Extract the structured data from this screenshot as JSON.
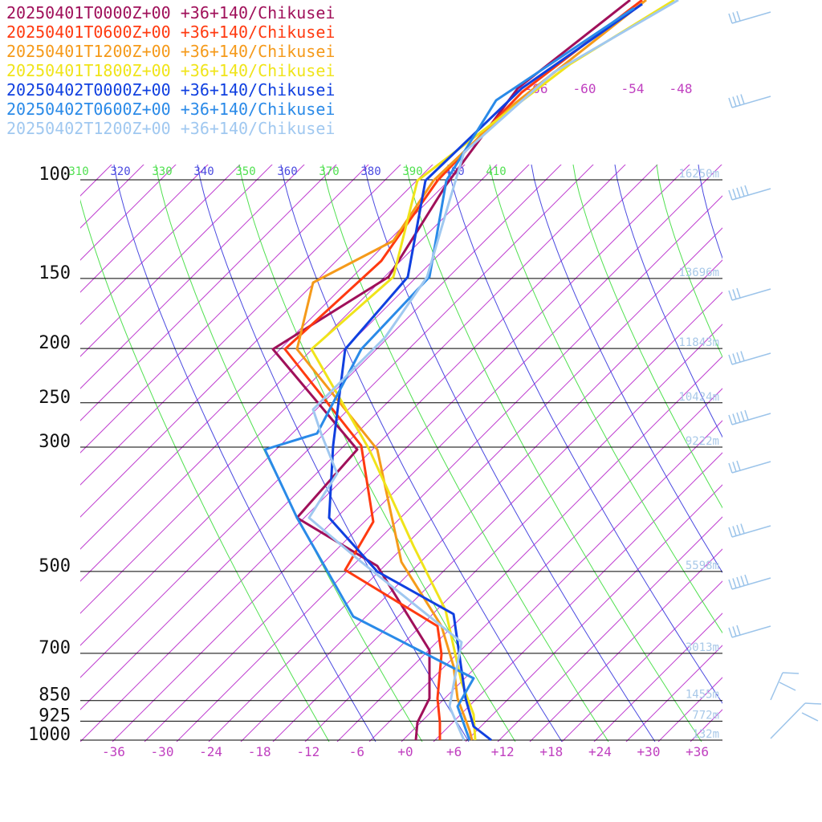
{
  "legend": [
    {
      "label": "20250401T0000Z+00 +36+140/Chikusei",
      "color": "#a0105a"
    },
    {
      "label": "20250401T0600Z+00 +36+140/Chikusei",
      "color": "#ff3a10"
    },
    {
      "label": "20250401T1200Z+00 +36+140/Chikusei",
      "color": "#f59a1a"
    },
    {
      "label": "20250401T1800Z+00 +36+140/Chikusei",
      "color": "#f0e41a"
    },
    {
      "label": "20250402T0000Z+00 +36+140/Chikusei",
      "color": "#1040e0"
    },
    {
      "label": "20250402T0600Z+00 +36+140/Chikusei",
      "color": "#2a8ae8"
    },
    {
      "label": "20250402T1200Z+00 +36+140/Chikusei",
      "color": "#a0c8f0"
    }
  ],
  "chart_data": {
    "type": "line",
    "xlim": [
      -40,
      40
    ],
    "pressure_levels": [
      {
        "p": 100,
        "label": "100",
        "height": "16250m"
      },
      {
        "p": 150,
        "label": "150",
        "height": "13696m"
      },
      {
        "p": 200,
        "label": "200",
        "height": "11843m"
      },
      {
        "p": 250,
        "label": "250",
        "height": "10424m"
      },
      {
        "p": 300,
        "label": "300",
        "height": "9222m"
      },
      {
        "p": 500,
        "label": "500",
        "height": "5598m"
      },
      {
        "p": 700,
        "label": "700",
        "height": "3013m"
      },
      {
        "p": 850,
        "label": "850",
        "height": "1455m"
      },
      {
        "p": 925,
        "label": "925",
        "height": "772m"
      },
      {
        "p": 1000,
        "label": "1000",
        "height": "132m"
      }
    ],
    "temp_ticks": [
      "-36",
      "-30",
      "-24",
      "-18",
      "-12",
      "-6",
      "+0",
      "+6",
      "+12",
      "+18",
      "+24",
      "+30",
      "+36"
    ],
    "temp_tick_values": [
      -36,
      -30,
      -24,
      -18,
      -12,
      -6,
      0,
      6,
      12,
      18,
      24,
      30,
      36
    ],
    "theta_labels": [
      {
        "text": "310",
        "color": "#50e050"
      },
      {
        "text": "320",
        "color": "#4a4ae0"
      },
      {
        "text": "330",
        "color": "#50e050"
      },
      {
        "text": "340",
        "color": "#4a4ae0"
      },
      {
        "text": "350",
        "color": "#50e050"
      },
      {
        "text": "360",
        "color": "#4a4ae0"
      },
      {
        "text": "370",
        "color": "#50e050"
      },
      {
        "text": "380",
        "color": "#4a4ae0"
      },
      {
        "text": "390",
        "color": "#50e050"
      },
      {
        "text": "400",
        "color": "#4a4ae0"
      },
      {
        "text": "410",
        "color": "#50e050"
      }
    ],
    "mix_labels": [
      "-66",
      "-60",
      "-54",
      "-48"
    ],
    "series": [
      {
        "color": "#a0105a",
        "points": [
          [
            785,
            0
          ],
          [
            645,
            110
          ],
          [
            556,
            230
          ],
          [
            484,
            345
          ],
          [
            340,
            435
          ],
          [
            445,
            560
          ],
          [
            370,
            645
          ],
          [
            470,
            705
          ],
          [
            535,
            810
          ],
          [
            535,
            870
          ],
          [
            520,
            900
          ],
          [
            518,
            922
          ]
        ]
      },
      {
        "color": "#ff3a10",
        "points": [
          [
            800,
            0
          ],
          [
            650,
            115
          ],
          [
            545,
            225
          ],
          [
            475,
            325
          ],
          [
            355,
            435
          ],
          [
            450,
            555
          ],
          [
            465,
            650
          ],
          [
            430,
            710
          ],
          [
            545,
            780
          ],
          [
            550,
            815
          ],
          [
            545,
            870
          ],
          [
            548,
            900
          ],
          [
            548,
            922
          ]
        ]
      },
      {
        "color": "#f59a1a",
        "points": [
          [
            805,
            0
          ],
          [
            640,
            130
          ],
          [
            540,
            225
          ],
          [
            490,
            300
          ],
          [
            390,
            352
          ],
          [
            370,
            435
          ],
          [
            470,
            560
          ],
          [
            500,
            700
          ],
          [
            550,
            780
          ],
          [
            565,
            830
          ],
          [
            570,
            870
          ],
          [
            585,
            910
          ],
          [
            588,
            922
          ]
        ]
      },
      {
        "color": "#f0e41a",
        "points": [
          [
            840,
            0
          ],
          [
            710,
            80
          ],
          [
            520,
            225
          ],
          [
            490,
            345
          ],
          [
            388,
            435
          ],
          [
            460,
            560
          ],
          [
            515,
            680
          ],
          [
            555,
            760
          ],
          [
            575,
            850
          ],
          [
            590,
            890
          ],
          [
            592,
            922
          ]
        ]
      },
      {
        "color": "#1040e0",
        "points": [
          [
            800,
            5
          ],
          [
            650,
            110
          ],
          [
            530,
            225
          ],
          [
            508,
            345
          ],
          [
            430,
            435
          ],
          [
            415,
            555
          ],
          [
            410,
            645
          ],
          [
            470,
            712
          ],
          [
            565,
            765
          ],
          [
            580,
            870
          ],
          [
            590,
            905
          ],
          [
            612,
            922
          ]
        ]
      },
      {
        "color": "#2a8ae8",
        "points": [
          [
            790,
            10
          ],
          [
            618,
            125
          ],
          [
            556,
            225
          ],
          [
            535,
            345
          ],
          [
            450,
            435
          ],
          [
            395,
            540
          ],
          [
            330,
            560
          ],
          [
            370,
            645
          ],
          [
            440,
            768
          ],
          [
            590,
            845
          ],
          [
            570,
            880
          ],
          [
            585,
            922
          ]
        ]
      },
      {
        "color": "#a0c8f0",
        "points": [
          [
            845,
            0
          ],
          [
            690,
            90
          ],
          [
            578,
            190
          ],
          [
            560,
            250
          ],
          [
            532,
            345
          ],
          [
            480,
            420
          ],
          [
            390,
            510
          ],
          [
            400,
            540
          ],
          [
            420,
            590
          ],
          [
            385,
            645
          ],
          [
            450,
            700
          ],
          [
            575,
            800
          ],
          [
            560,
            880
          ],
          [
            578,
            922
          ]
        ]
      }
    ]
  }
}
